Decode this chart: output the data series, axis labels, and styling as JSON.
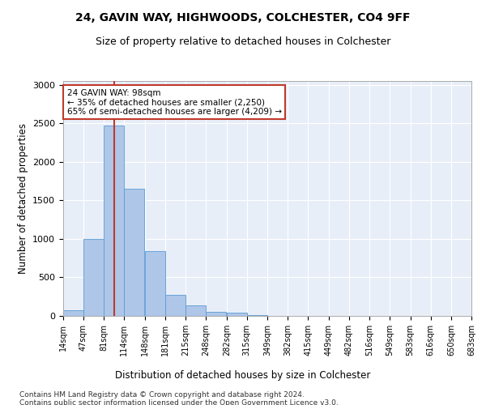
{
  "title1": "24, GAVIN WAY, HIGHWOODS, COLCHESTER, CO4 9FF",
  "title2": "Size of property relative to detached houses in Colchester",
  "xlabel": "Distribution of detached houses by size in Colchester",
  "ylabel": "Number of detached properties",
  "footnote1": "Contains HM Land Registry data © Crown copyright and database right 2024.",
  "footnote2": "Contains public sector information licensed under the Open Government Licence v3.0.",
  "annotation_title": "24 GAVIN WAY: 98sqm",
  "annotation_line1": "← 35% of detached houses are smaller (2,250)",
  "annotation_line2": "65% of semi-detached houses are larger (4,209) →",
  "property_size": 98,
  "bin_edges": [
    14,
    47,
    81,
    114,
    148,
    181,
    215,
    248,
    282,
    315,
    349,
    382,
    415,
    449,
    482,
    516,
    549,
    583,
    616,
    650,
    683
  ],
  "bar_heights": [
    75,
    1000,
    2470,
    1650,
    840,
    270,
    140,
    55,
    45,
    10,
    5,
    0,
    0,
    0,
    0,
    0,
    0,
    0,
    0,
    0
  ],
  "bar_color": "#aec6e8",
  "bar_edge_color": "#5b9bd5",
  "vline_color": "#c0392b",
  "vline_x": 98,
  "ylim": [
    0,
    3050
  ],
  "yticks": [
    0,
    500,
    1000,
    1500,
    2000,
    2500,
    3000
  ],
  "background_color": "#e8eef8",
  "annotation_box_color": "#ffffff",
  "annotation_box_edge_color": "#c0392b"
}
